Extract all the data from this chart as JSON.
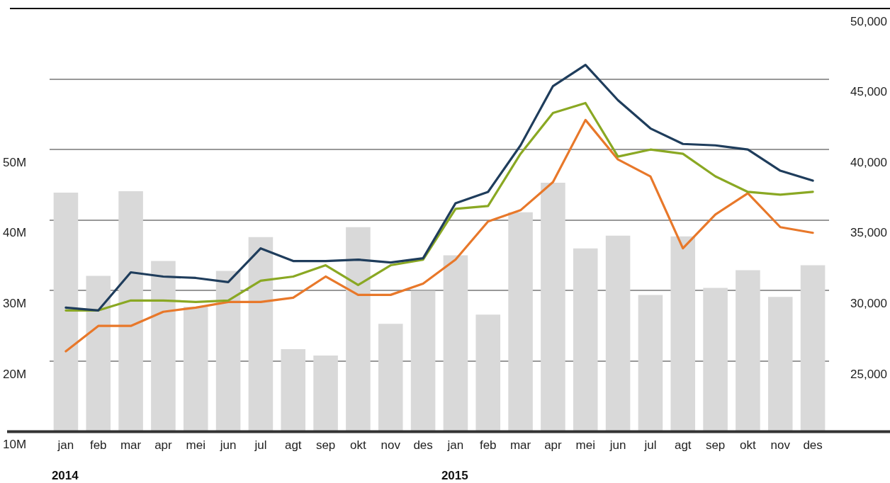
{
  "chart_data": {
    "type": "bar",
    "categories": [
      "jan",
      "feb",
      "mar",
      "apr",
      "mei",
      "jun",
      "jul",
      "agt",
      "sep",
      "okt",
      "nov",
      "des",
      "jan",
      "feb",
      "mar",
      "apr",
      "mei",
      "jun",
      "jul",
      "agt",
      "sep",
      "okt",
      "nov",
      "des"
    ],
    "series": [
      {
        "color": "#d9d9d9",
        "values": [
          43.9,
          32.1,
          44.1,
          34.2,
          27.7,
          32.8,
          37.6,
          21.7,
          20.8,
          39.0,
          25.3,
          30.0,
          35.0,
          26.6,
          41.1,
          45.3,
          36.0,
          37.8,
          29.4,
          37.7,
          30.4,
          32.9,
          29.1,
          33.6
        ]
      },
      {
        "type": "line",
        "axis": "y2",
        "color": "#1f3d5c",
        "values": [
          28800,
          28600,
          31300,
          31000,
          30900,
          30600,
          33000,
          32100,
          32100,
          32200,
          32000,
          32300,
          36200,
          37000,
          40300,
          44500,
          46000,
          43500,
          41500,
          40400,
          40300,
          40000,
          38500,
          37800
        ]
      },
      {
        "type": "line",
        "axis": "y2",
        "color": "#8aa823",
        "values": [
          28600,
          28600,
          29300,
          29300,
          29200,
          29300,
          30700,
          31000,
          31800,
          30400,
          31800,
          32200,
          35800,
          36000,
          39700,
          42600,
          43300,
          39500,
          40000,
          39700,
          38100,
          37000,
          36800,
          37000
        ]
      },
      {
        "type": "line",
        "axis": "y2",
        "color": "#e8782a",
        "values": [
          25700,
          27500,
          27500,
          28500,
          28800,
          29200,
          29200,
          29500,
          31000,
          29700,
          29700,
          30500,
          32200,
          34900,
          35700,
          37700,
          42100,
          39300,
          38100,
          33000,
          35400,
          36900,
          34500,
          34100
        ]
      }
    ],
    "ylim": [
      10,
      70
    ],
    "yticks": [
      {
        "value": 10,
        "label": "10M"
      },
      {
        "value": 20,
        "label": "20M"
      },
      {
        "value": 30,
        "label": "30M"
      },
      {
        "value": 40,
        "label": "40M"
      },
      {
        "value": 50,
        "label": "50M"
      },
      {
        "value": 60,
        "label": null
      },
      {
        "value": 70,
        "label": null
      }
    ],
    "y2lim": [
      20000,
      50000
    ],
    "y2ticks": [
      {
        "value": 20000,
        "label": null
      },
      {
        "value": 25000,
        "label": "25,000"
      },
      {
        "value": 30000,
        "label": "30,000"
      },
      {
        "value": 35000,
        "label": "35,000"
      },
      {
        "value": 40000,
        "label": "40,000"
      },
      {
        "value": 45000,
        "label": "45,000"
      },
      {
        "value": 50000,
        "label": "50,000"
      }
    ],
    "grid": "y",
    "legend": false,
    "marker": "none",
    "line_style": "solid",
    "annotations": [
      "2014",
      "2015"
    ]
  }
}
